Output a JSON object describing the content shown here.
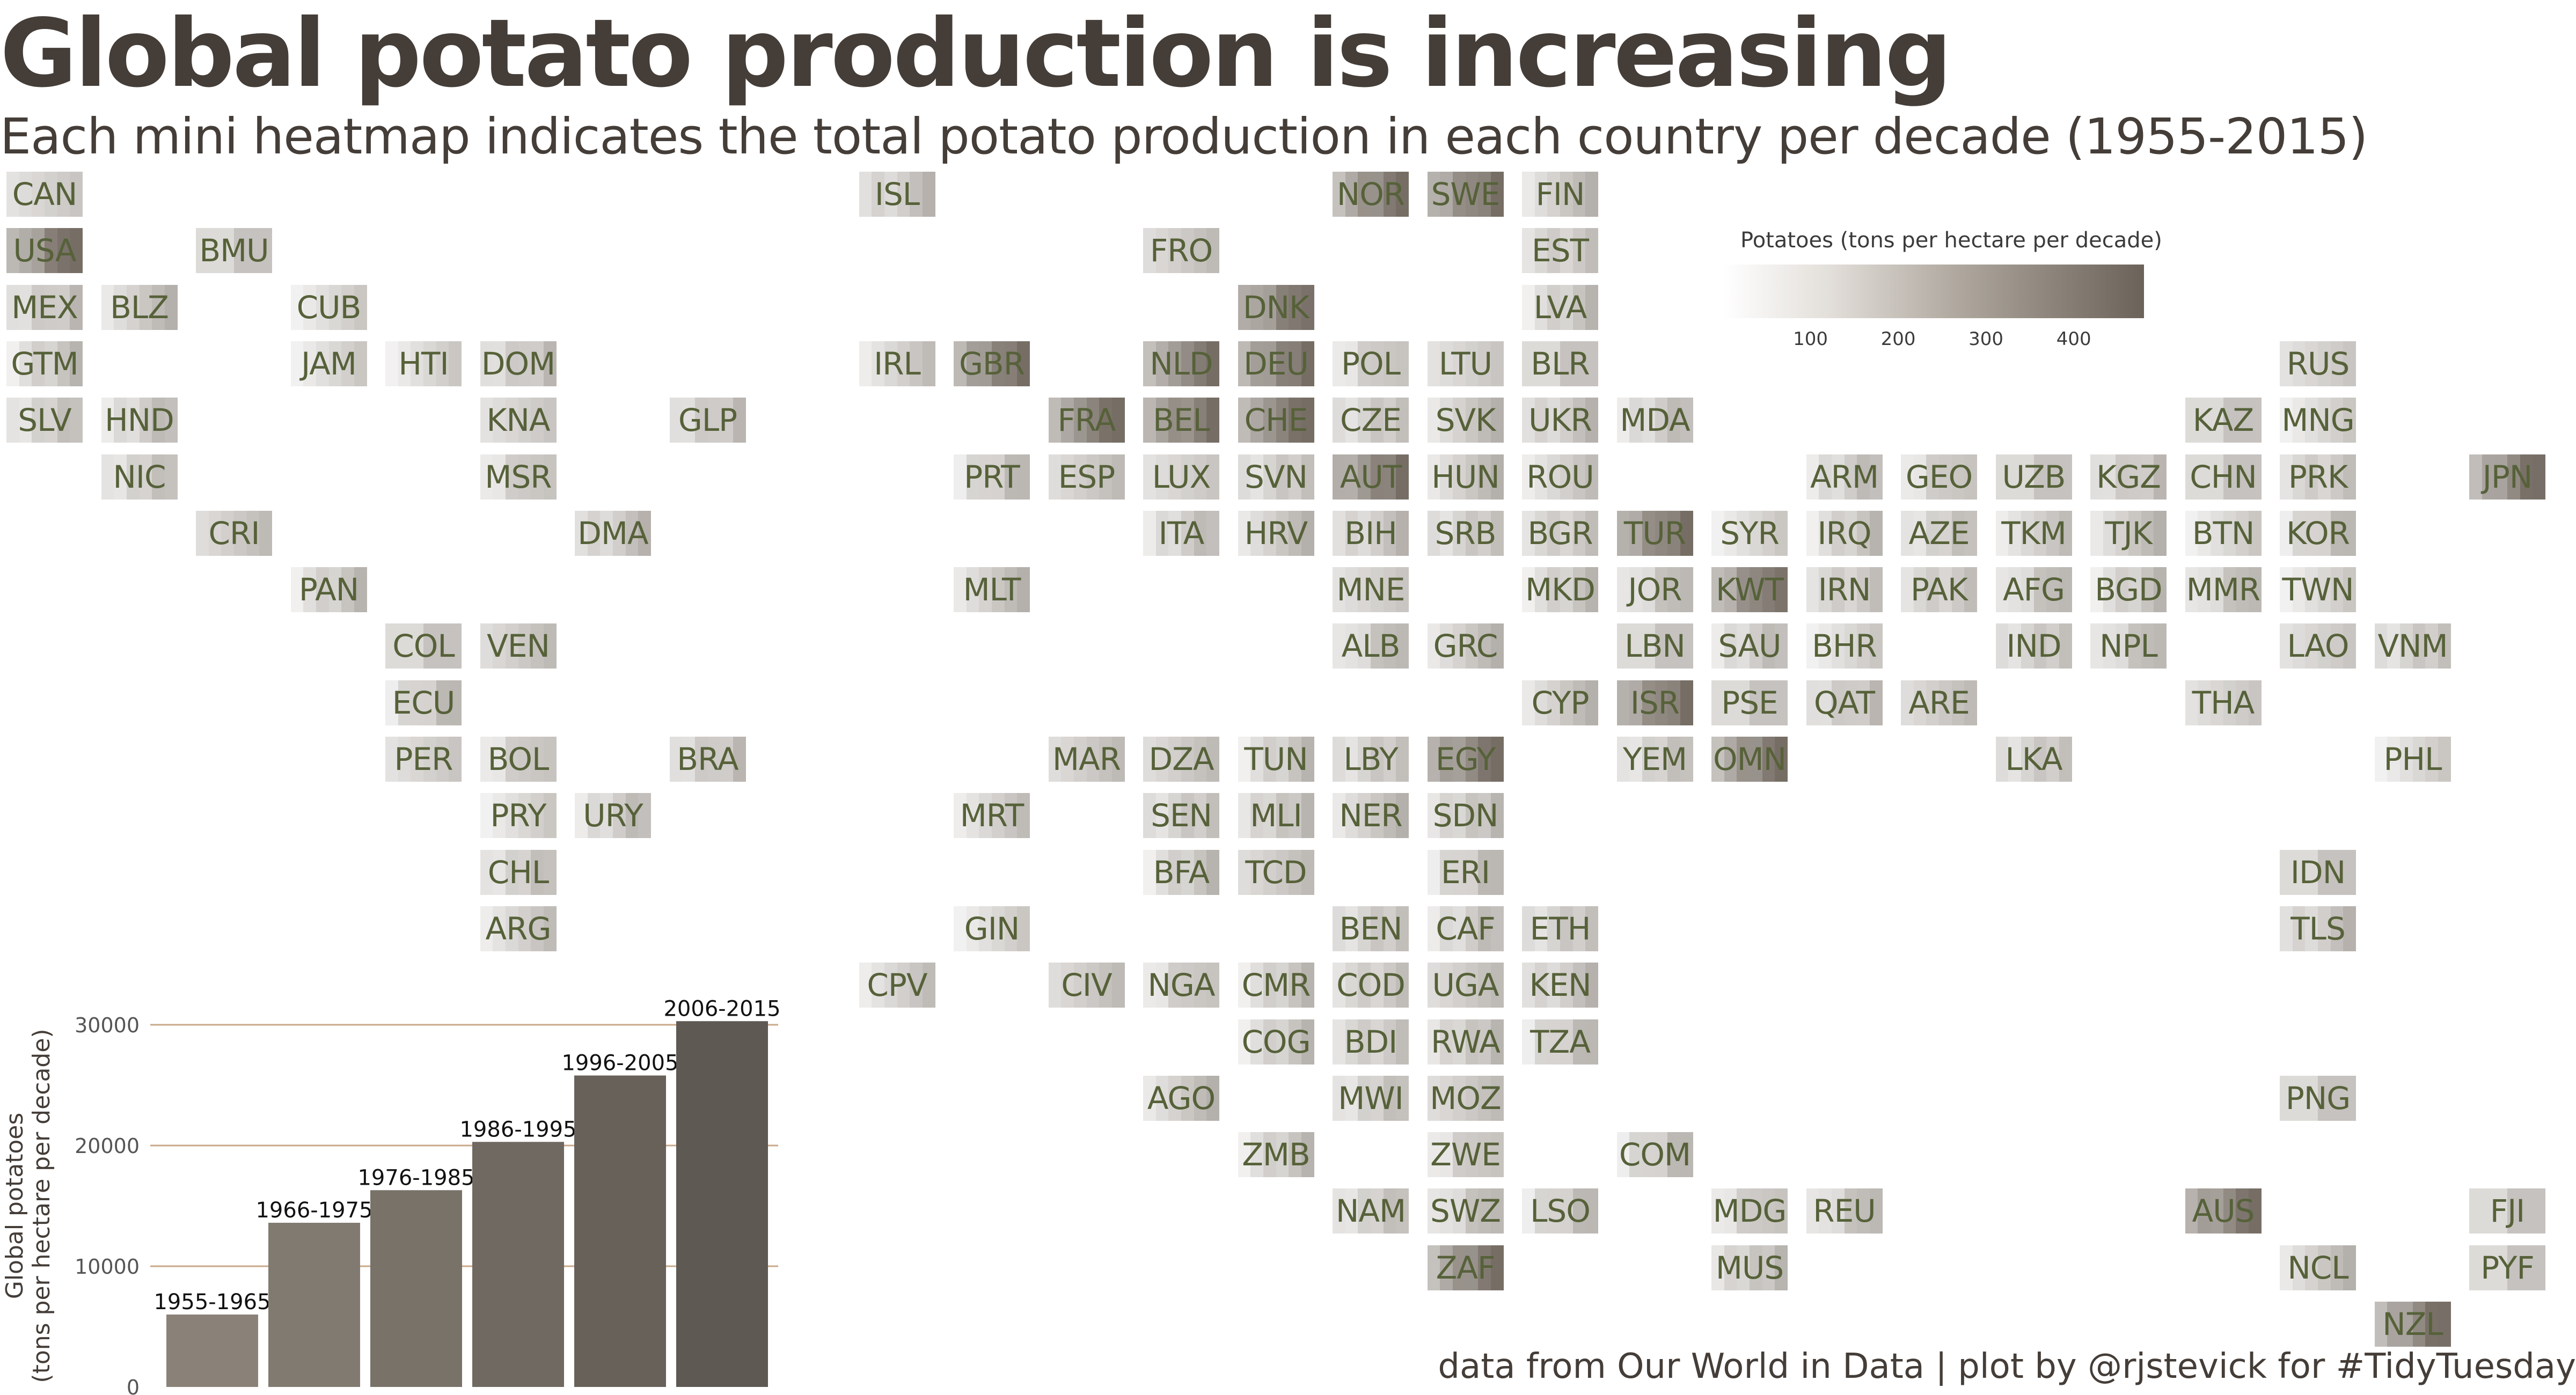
{
  "title": "Global potato production is increasing",
  "subtitle": "Each mini heatmap indicates the total potato production in each country per decade (1955-2015)",
  "footer": "data from Our World in Data | plot by @rjstevick for #TidyTuesday",
  "colors": {
    "text": "#443d38",
    "code": "#566139",
    "low": "#ffffff",
    "high": "#5e544a",
    "bar_light": "#8a8278",
    "bar_dark": "#5e5953",
    "grid": "#c9a989"
  },
  "legend": {
    "title": "Potatoes (tons per hectare per decade)",
    "ticks": [
      100,
      200,
      300,
      400
    ],
    "max": 480
  },
  "map_grid": {
    "codes": [
      [
        "CAN",
        "",
        "",
        "",
        "",
        "",
        "",
        "",
        "",
        "ISL",
        "",
        "",
        "",
        "",
        "NOR",
        "SWE",
        "FIN",
        "",
        "",
        "",
        "",
        "",
        "",
        "",
        "",
        "",
        ""
      ],
      [
        "USA",
        "",
        "BMU",
        "",
        "",
        "",
        "",
        "",
        "",
        "",
        "",
        "",
        "FRO",
        "",
        "",
        "",
        "EST",
        "",
        "",
        "",
        "",
        "",
        "",
        "",
        "",
        "",
        ""
      ],
      [
        "MEX",
        "BLZ",
        "",
        "CUB",
        "",
        "",
        "",
        "",
        "",
        "",
        "",
        "",
        "",
        "DNK",
        "",
        "",
        "LVA",
        "",
        "",
        "",
        "",
        "",
        "",
        "",
        "",
        "",
        ""
      ],
      [
        "GTM",
        "",
        "",
        "JAM",
        "HTI",
        "DOM",
        "",
        "",
        "",
        "IRL",
        "GBR",
        "",
        "NLD",
        "DEU",
        "POL",
        "LTU",
        "BLR",
        "",
        "",
        "",
        "",
        "",
        "",
        "",
        "RUS",
        "",
        ""
      ],
      [
        "SLV",
        "HND",
        "",
        "",
        "",
        "KNA",
        "",
        "GLP",
        "",
        "",
        "",
        "FRA",
        "BEL",
        "CHE",
        "CZE",
        "SVK",
        "UKR",
        "MDA",
        "",
        "",
        "",
        "",
        "",
        "KAZ",
        "MNG",
        "",
        ""
      ],
      [
        "",
        "NIC",
        "",
        "",
        "",
        "MSR",
        "",
        "",
        "",
        "",
        "PRT",
        "ESP",
        "LUX",
        "SVN",
        "AUT",
        "HUN",
        "ROU",
        "",
        "",
        "ARM",
        "GEO",
        "UZB",
        "KGZ",
        "CHN",
        "PRK",
        "",
        "JPN"
      ],
      [
        "",
        "",
        "CRI",
        "",
        "",
        "",
        "DMA",
        "",
        "",
        "",
        "",
        "",
        "ITA",
        "HRV",
        "BIH",
        "SRB",
        "BGR",
        "TUR",
        "SYR",
        "IRQ",
        "AZE",
        "TKM",
        "TJK",
        "BTN",
        "KOR",
        "",
        ""
      ],
      [
        "",
        "",
        "",
        "PAN",
        "",
        "",
        "",
        "",
        "",
        "",
        "MLT",
        "",
        "",
        "",
        "MNE",
        "",
        "MKD",
        "JOR",
        "KWT",
        "IRN",
        "PAK",
        "AFG",
        "BGD",
        "MMR",
        "TWN",
        "",
        ""
      ],
      [
        "",
        "",
        "",
        "",
        "COL",
        "VEN",
        "",
        "",
        "",
        "",
        "",
        "",
        "",
        "",
        "ALB",
        "GRC",
        "",
        "LBN",
        "SAU",
        "BHR",
        "",
        "IND",
        "NPL",
        "",
        "LAO",
        "VNM",
        ""
      ],
      [
        "",
        "",
        "",
        "",
        "ECU",
        "",
        "",
        "",
        "",
        "",
        "",
        "",
        "",
        "",
        "",
        "",
        "CYP",
        "ISR",
        "PSE",
        "QAT",
        "ARE",
        "",
        "",
        "THA",
        "",
        "",
        ""
      ],
      [
        "",
        "",
        "",
        "",
        "PER",
        "BOL",
        "",
        "BRA",
        "",
        "",
        "",
        "MAR",
        "DZA",
        "TUN",
        "LBY",
        "EGY",
        "",
        "YEM",
        "OMN",
        "",
        "",
        "LKA",
        "",
        "",
        "",
        "PHL",
        ""
      ],
      [
        "",
        "",
        "",
        "",
        "",
        "PRY",
        "URY",
        "",
        "",
        "",
        "MRT",
        "",
        "SEN",
        "MLI",
        "NER",
        "SDN",
        "",
        "",
        "",
        "",
        "",
        "",
        "",
        "",
        "",
        "",
        ""
      ],
      [
        "",
        "",
        "",
        "",
        "",
        "CHL",
        "",
        "",
        "",
        "",
        "",
        "",
        "BFA",
        "TCD",
        "",
        "ERI",
        "",
        "",
        "",
        "",
        "",
        "",
        "",
        "",
        "IDN",
        "",
        ""
      ],
      [
        "",
        "",
        "",
        "",
        "",
        "ARG",
        "",
        "",
        "",
        "",
        "GIN",
        "",
        "",
        "",
        "BEN",
        "CAF",
        "ETH",
        "",
        "",
        "",
        "",
        "",
        "",
        "",
        "TLS",
        "",
        ""
      ],
      [
        "",
        "",
        "",
        "",
        "",
        "",
        "",
        "",
        "",
        "CPV",
        "",
        "CIV",
        "NGA",
        "CMR",
        "COD",
        "UGA",
        "KEN",
        "",
        "",
        "",
        "",
        "",
        "",
        "",
        "",
        "",
        ""
      ],
      [
        "",
        "",
        "",
        "",
        "",
        "",
        "",
        "",
        "",
        "",
        "",
        "",
        "",
        "COG",
        "BDI",
        "RWA",
        "TZA",
        "",
        "",
        "",
        "",
        "",
        "",
        "",
        "",
        "",
        ""
      ],
      [
        "",
        "",
        "",
        "",
        "",
        "",
        "",
        "",
        "",
        "",
        "",
        "",
        "AGO",
        "",
        "MWI",
        "MOZ",
        "",
        "",
        "",
        "",
        "",
        "",
        "",
        "",
        "PNG",
        "",
        ""
      ],
      [
        "",
        "",
        "",
        "",
        "",
        "",
        "",
        "",
        "",
        "",
        "",
        "",
        "",
        "ZMB",
        "",
        "ZWE",
        "",
        "COM",
        "",
        "",
        "",
        "",
        "",
        "",
        "",
        "",
        ""
      ],
      [
        "",
        "",
        "",
        "",
        "",
        "",
        "",
        "",
        "",
        "",
        "",
        "",
        "",
        "",
        "NAM",
        "SWZ",
        "LSO",
        "",
        "MDG",
        "REU",
        "",
        "",
        "",
        "AUS",
        "",
        "",
        "FJI"
      ],
      [
        "",
        "",
        "",
        "",
        "",
        "",
        "",
        "",
        "",
        "",
        "",
        "",
        "",
        "",
        "",
        "ZAF",
        "",
        "",
        "MUS",
        "",
        "",
        "",
        "",
        "",
        "NCL",
        "",
        "PYF"
      ],
      [
        "",
        "",
        "",
        "",
        "",
        "",
        "",
        "",
        "",
        "",
        "",
        "",
        "",
        "",
        "",
        "",
        "",
        "",
        "",
        "",
        "",
        "",
        "",
        "",
        "",
        "NZL",
        ""
      ]
    ]
  },
  "chart_data": {
    "type": "bar",
    "title": "",
    "xlabel": "",
    "ylabel": "Global potatoes",
    "ylabel2": "(tons per hectare per decade)",
    "categories": [
      "1955-1965",
      "1966-1975",
      "1976-1985",
      "1986-1995",
      "1996-2005",
      "2006-2015"
    ],
    "values": [
      6000,
      13600,
      16300,
      20300,
      25800,
      30300
    ],
    "ylim": [
      0,
      30000
    ],
    "yticks": [
      0,
      10000,
      20000,
      30000
    ]
  }
}
